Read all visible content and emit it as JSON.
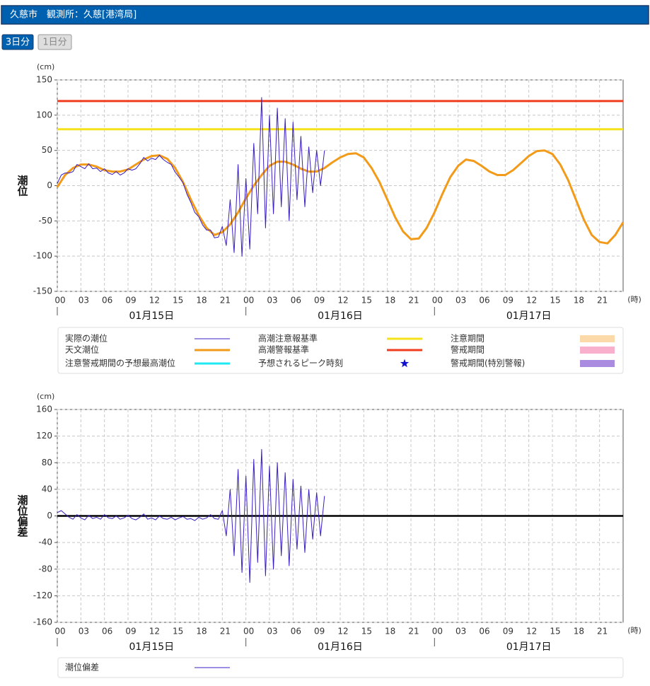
{
  "header": {
    "title": "久慈市　観測所：久慈[港湾局]"
  },
  "buttons": [
    {
      "label": "3日分",
      "active": true
    },
    {
      "label": "1日分",
      "active": false
    }
  ],
  "chart_data": [
    {
      "type": "line",
      "y_label": "潮位",
      "y_unit": "(cm)",
      "x_unit": "(時)",
      "xlim": [
        0,
        72
      ],
      "xticks": [
        {
          "value": 0,
          "label": "00"
        },
        {
          "value": 3,
          "label": "03"
        },
        {
          "value": 6,
          "label": "06"
        },
        {
          "value": 9,
          "label": "09"
        },
        {
          "value": 12,
          "label": "12"
        },
        {
          "value": 15,
          "label": "15"
        },
        {
          "value": 18,
          "label": "18"
        },
        {
          "value": 21,
          "label": "21"
        },
        {
          "value": 24,
          "label": "00"
        },
        {
          "value": 27,
          "label": "03"
        },
        {
          "value": 30,
          "label": "06"
        },
        {
          "value": 33,
          "label": "09"
        },
        {
          "value": 36,
          "label": "12"
        },
        {
          "value": 39,
          "label": "15"
        },
        {
          "value": 42,
          "label": "18"
        },
        {
          "value": 45,
          "label": "21"
        },
        {
          "value": 48,
          "label": "00"
        },
        {
          "value": 51,
          "label": "03"
        },
        {
          "value": 54,
          "label": "06"
        },
        {
          "value": 57,
          "label": "09"
        },
        {
          "value": 60,
          "label": "12"
        },
        {
          "value": 63,
          "label": "15"
        },
        {
          "value": 66,
          "label": "18"
        },
        {
          "value": 69,
          "label": "21"
        }
      ],
      "days": [
        {
          "start": 0,
          "end": 24,
          "label": "01月15日"
        },
        {
          "start": 24,
          "end": 48,
          "label": "01月16日"
        },
        {
          "start": 48,
          "end": 72,
          "label": "01月17日"
        }
      ],
      "ylim": [
        -150,
        150
      ],
      "yticks": [
        150,
        100,
        50,
        0,
        -50,
        -100,
        -150
      ],
      "grid": true,
      "reference_lines": [
        {
          "name": "高潮注意報基準",
          "value": 80,
          "color": "#f5e21a"
        },
        {
          "name": "高潮警報基準",
          "value": 120,
          "color": "#f03c1e"
        }
      ],
      "series": [
        {
          "name": "実際の潮位",
          "color": "#3a1ec0",
          "line_width": 1,
          "x": [
            0,
            0.5,
            1,
            1.5,
            2,
            2.5,
            3,
            3.5,
            4,
            4.5,
            5,
            5.5,
            6,
            6.5,
            7,
            7.5,
            8,
            8.5,
            9,
            9.5,
            10,
            10.5,
            11,
            11.5,
            12,
            12.5,
            13,
            13.5,
            14,
            14.5,
            15,
            15.5,
            16,
            16.5,
            17,
            17.5,
            18,
            18.5,
            19,
            19.5,
            20,
            20.5,
            21,
            21.5,
            22,
            22.5,
            23,
            23.5,
            24,
            24.5,
            25,
            25.5,
            26,
            26.5,
            27,
            27.5,
            28,
            28.5,
            29,
            29.5,
            30,
            30.5,
            31,
            31.5,
            32,
            32.5,
            33,
            33.5,
            34
          ],
          "values": [
            3,
            15,
            18,
            18,
            20,
            30,
            27,
            24,
            31,
            24,
            25,
            20,
            24,
            18,
            16,
            20,
            15,
            18,
            24,
            22,
            24,
            31,
            40,
            35,
            39,
            37,
            43,
            37,
            33,
            30,
            19,
            12,
            4,
            -12,
            -24,
            -38,
            -44,
            -56,
            -63,
            -63,
            -74,
            -73,
            -58,
            -85,
            -20,
            -95,
            30,
            -100,
            10,
            -90,
            60,
            -40,
            125,
            -60,
            100,
            -40,
            110,
            -30,
            95,
            -50,
            90,
            -20,
            70,
            -30,
            55,
            -10,
            50,
            0,
            50
          ]
        },
        {
          "name": "天文潮位",
          "color": "#f29b1a",
          "line_width": 3,
          "x": [
            0,
            1,
            2,
            3,
            4,
            5,
            6,
            7,
            8,
            9,
            10,
            11,
            12,
            13,
            14,
            15,
            16,
            17,
            18,
            19,
            20,
            21,
            22,
            23,
            24,
            25,
            26,
            27,
            28,
            29,
            30,
            31,
            32,
            33,
            34,
            35,
            36,
            37,
            38,
            39,
            40,
            41,
            42,
            43,
            44,
            45,
            46,
            47,
            48,
            49,
            50,
            51,
            52,
            53,
            54,
            55,
            56,
            57,
            58,
            59,
            60,
            61,
            62,
            63,
            64,
            65,
            66,
            67,
            68,
            69,
            70,
            71,
            72
          ],
          "values": [
            -2,
            15,
            25,
            30,
            30,
            27,
            22,
            20,
            20,
            23,
            30,
            37,
            42,
            43,
            38,
            25,
            5,
            -20,
            -42,
            -60,
            -70,
            -66,
            -55,
            -38,
            -18,
            0,
            15,
            28,
            34,
            34,
            30,
            24,
            20,
            20,
            25,
            33,
            40,
            45,
            46,
            40,
            25,
            5,
            -20,
            -45,
            -65,
            -76,
            -75,
            -60,
            -38,
            -12,
            12,
            28,
            37,
            35,
            28,
            20,
            15,
            15,
            22,
            32,
            42,
            49,
            50,
            45,
            30,
            8,
            -20,
            -48,
            -70,
            -80,
            -82,
            -70,
            -52
          ]
        }
      ],
      "forecast_items": [
        {
          "name": "注意警戒期間の予想最高潮位",
          "color": "#1ee8f0",
          "symbol": "line"
        },
        {
          "name": "予想されるピーク時刻",
          "color": "#1010d0",
          "symbol": "star"
        }
      ],
      "period_items": [
        {
          "name": "注意期間",
          "color": "#fbd9a8"
        },
        {
          "name": "警戒期間",
          "color": "#f8b0cc"
        },
        {
          "name": "警戒期間(特別警報)",
          "color": "#a98ce0"
        }
      ]
    },
    {
      "type": "line",
      "y_label": "潮位偏差",
      "y_unit": "(cm)",
      "x_unit": "(時)",
      "xlim": [
        0,
        72
      ],
      "xticks": [
        {
          "value": 0,
          "label": "00"
        },
        {
          "value": 3,
          "label": "03"
        },
        {
          "value": 6,
          "label": "06"
        },
        {
          "value": 9,
          "label": "09"
        },
        {
          "value": 12,
          "label": "12"
        },
        {
          "value": 15,
          "label": "15"
        },
        {
          "value": 18,
          "label": "18"
        },
        {
          "value": 21,
          "label": "21"
        },
        {
          "value": 24,
          "label": "00"
        },
        {
          "value": 27,
          "label": "03"
        },
        {
          "value": 30,
          "label": "06"
        },
        {
          "value": 33,
          "label": "09"
        },
        {
          "value": 36,
          "label": "12"
        },
        {
          "value": 39,
          "label": "15"
        },
        {
          "value": 42,
          "label": "18"
        },
        {
          "value": 45,
          "label": "21"
        },
        {
          "value": 48,
          "label": "00"
        },
        {
          "value": 51,
          "label": "03"
        },
        {
          "value": 54,
          "label": "06"
        },
        {
          "value": 57,
          "label": "09"
        },
        {
          "value": 60,
          "label": "12"
        },
        {
          "value": 63,
          "label": "15"
        },
        {
          "value": 66,
          "label": "18"
        },
        {
          "value": 69,
          "label": "21"
        }
      ],
      "days": [
        {
          "start": 0,
          "end": 24,
          "label": "01月15日"
        },
        {
          "start": 24,
          "end": 48,
          "label": "01月16日"
        },
        {
          "start": 48,
          "end": 72,
          "label": "01月17日"
        }
      ],
      "ylim": [
        -160,
        160
      ],
      "yticks": [
        160,
        120,
        80,
        40,
        0,
        -40,
        -80,
        -120,
        -160
      ],
      "grid": true,
      "reference_lines": [
        {
          "value": 0,
          "color": "#000000"
        }
      ],
      "series": [
        {
          "name": "潮位偏差",
          "color": "#3a1ec0",
          "line_width": 1,
          "x": [
            0,
            0.5,
            1,
            1.5,
            2,
            2.5,
            3,
            3.5,
            4,
            4.5,
            5,
            5.5,
            6,
            6.5,
            7,
            7.5,
            8,
            8.5,
            9,
            9.5,
            10,
            10.5,
            11,
            11.5,
            12,
            12.5,
            13,
            13.5,
            14,
            14.5,
            15,
            15.5,
            16,
            16.5,
            17,
            17.5,
            18,
            18.5,
            19,
            19.5,
            20,
            20.5,
            21,
            21.5,
            22,
            22.5,
            23,
            23.5,
            24,
            24.5,
            25,
            25.5,
            26,
            26.5,
            27,
            27.5,
            28,
            28.5,
            29,
            29.5,
            30,
            30.5,
            31,
            31.5,
            32,
            32.5,
            33,
            33.5,
            34
          ],
          "values": [
            5,
            8,
            3,
            -2,
            -5,
            2,
            -3,
            -6,
            1,
            -4,
            -2,
            -5,
            2,
            -3,
            -4,
            0,
            -5,
            -3,
            1,
            -4,
            -6,
            -2,
            3,
            -5,
            -3,
            -6,
            0,
            -4,
            -5,
            -2,
            -6,
            -3,
            -1,
            -5,
            -4,
            -7,
            -2,
            -5,
            -3,
            2,
            -4,
            -5,
            8,
            -30,
            40,
            -60,
            70,
            -85,
            60,
            -100,
            85,
            -70,
            100,
            -90,
            75,
            -80,
            80,
            -60,
            65,
            -75,
            55,
            -50,
            45,
            -55,
            40,
            -35,
            35,
            -30,
            30
          ]
        }
      ]
    }
  ]
}
